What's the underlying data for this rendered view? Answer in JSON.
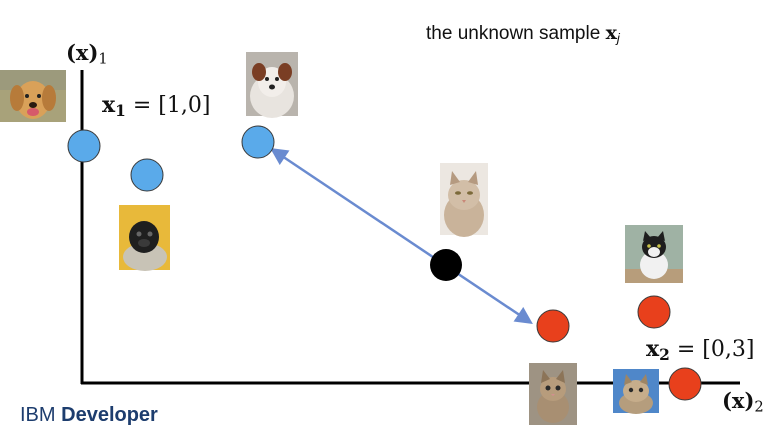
{
  "title": "the unknown sample",
  "title_var": "x",
  "title_sub": "j",
  "axis_y_label": {
    "var": "(x)",
    "sub": "1"
  },
  "axis_x_label": {
    "var": "(x)",
    "sub": "2"
  },
  "point_labels": [
    {
      "var": "x",
      "sub": "1",
      "value": " = [1,0]"
    },
    {
      "var": "x",
      "sub": "2",
      "value": " = [0,3]"
    }
  ],
  "brand": {
    "part1": "IBM ",
    "part2": "Developer"
  },
  "colors": {
    "dog": "#5aaaea",
    "cat": "#e8401c",
    "unknown": "#000000",
    "arrow": "#6a8bd0",
    "axis": "#000000"
  },
  "icons": [
    "dog-photo-icon",
    "pug-photo-icon",
    "border-collie-photo-icon",
    "maine-coon-photo-icon",
    "tuxedo-cat-photo-icon",
    "kitten-photo-icon",
    "tabby-cat-photo-icon"
  ]
}
